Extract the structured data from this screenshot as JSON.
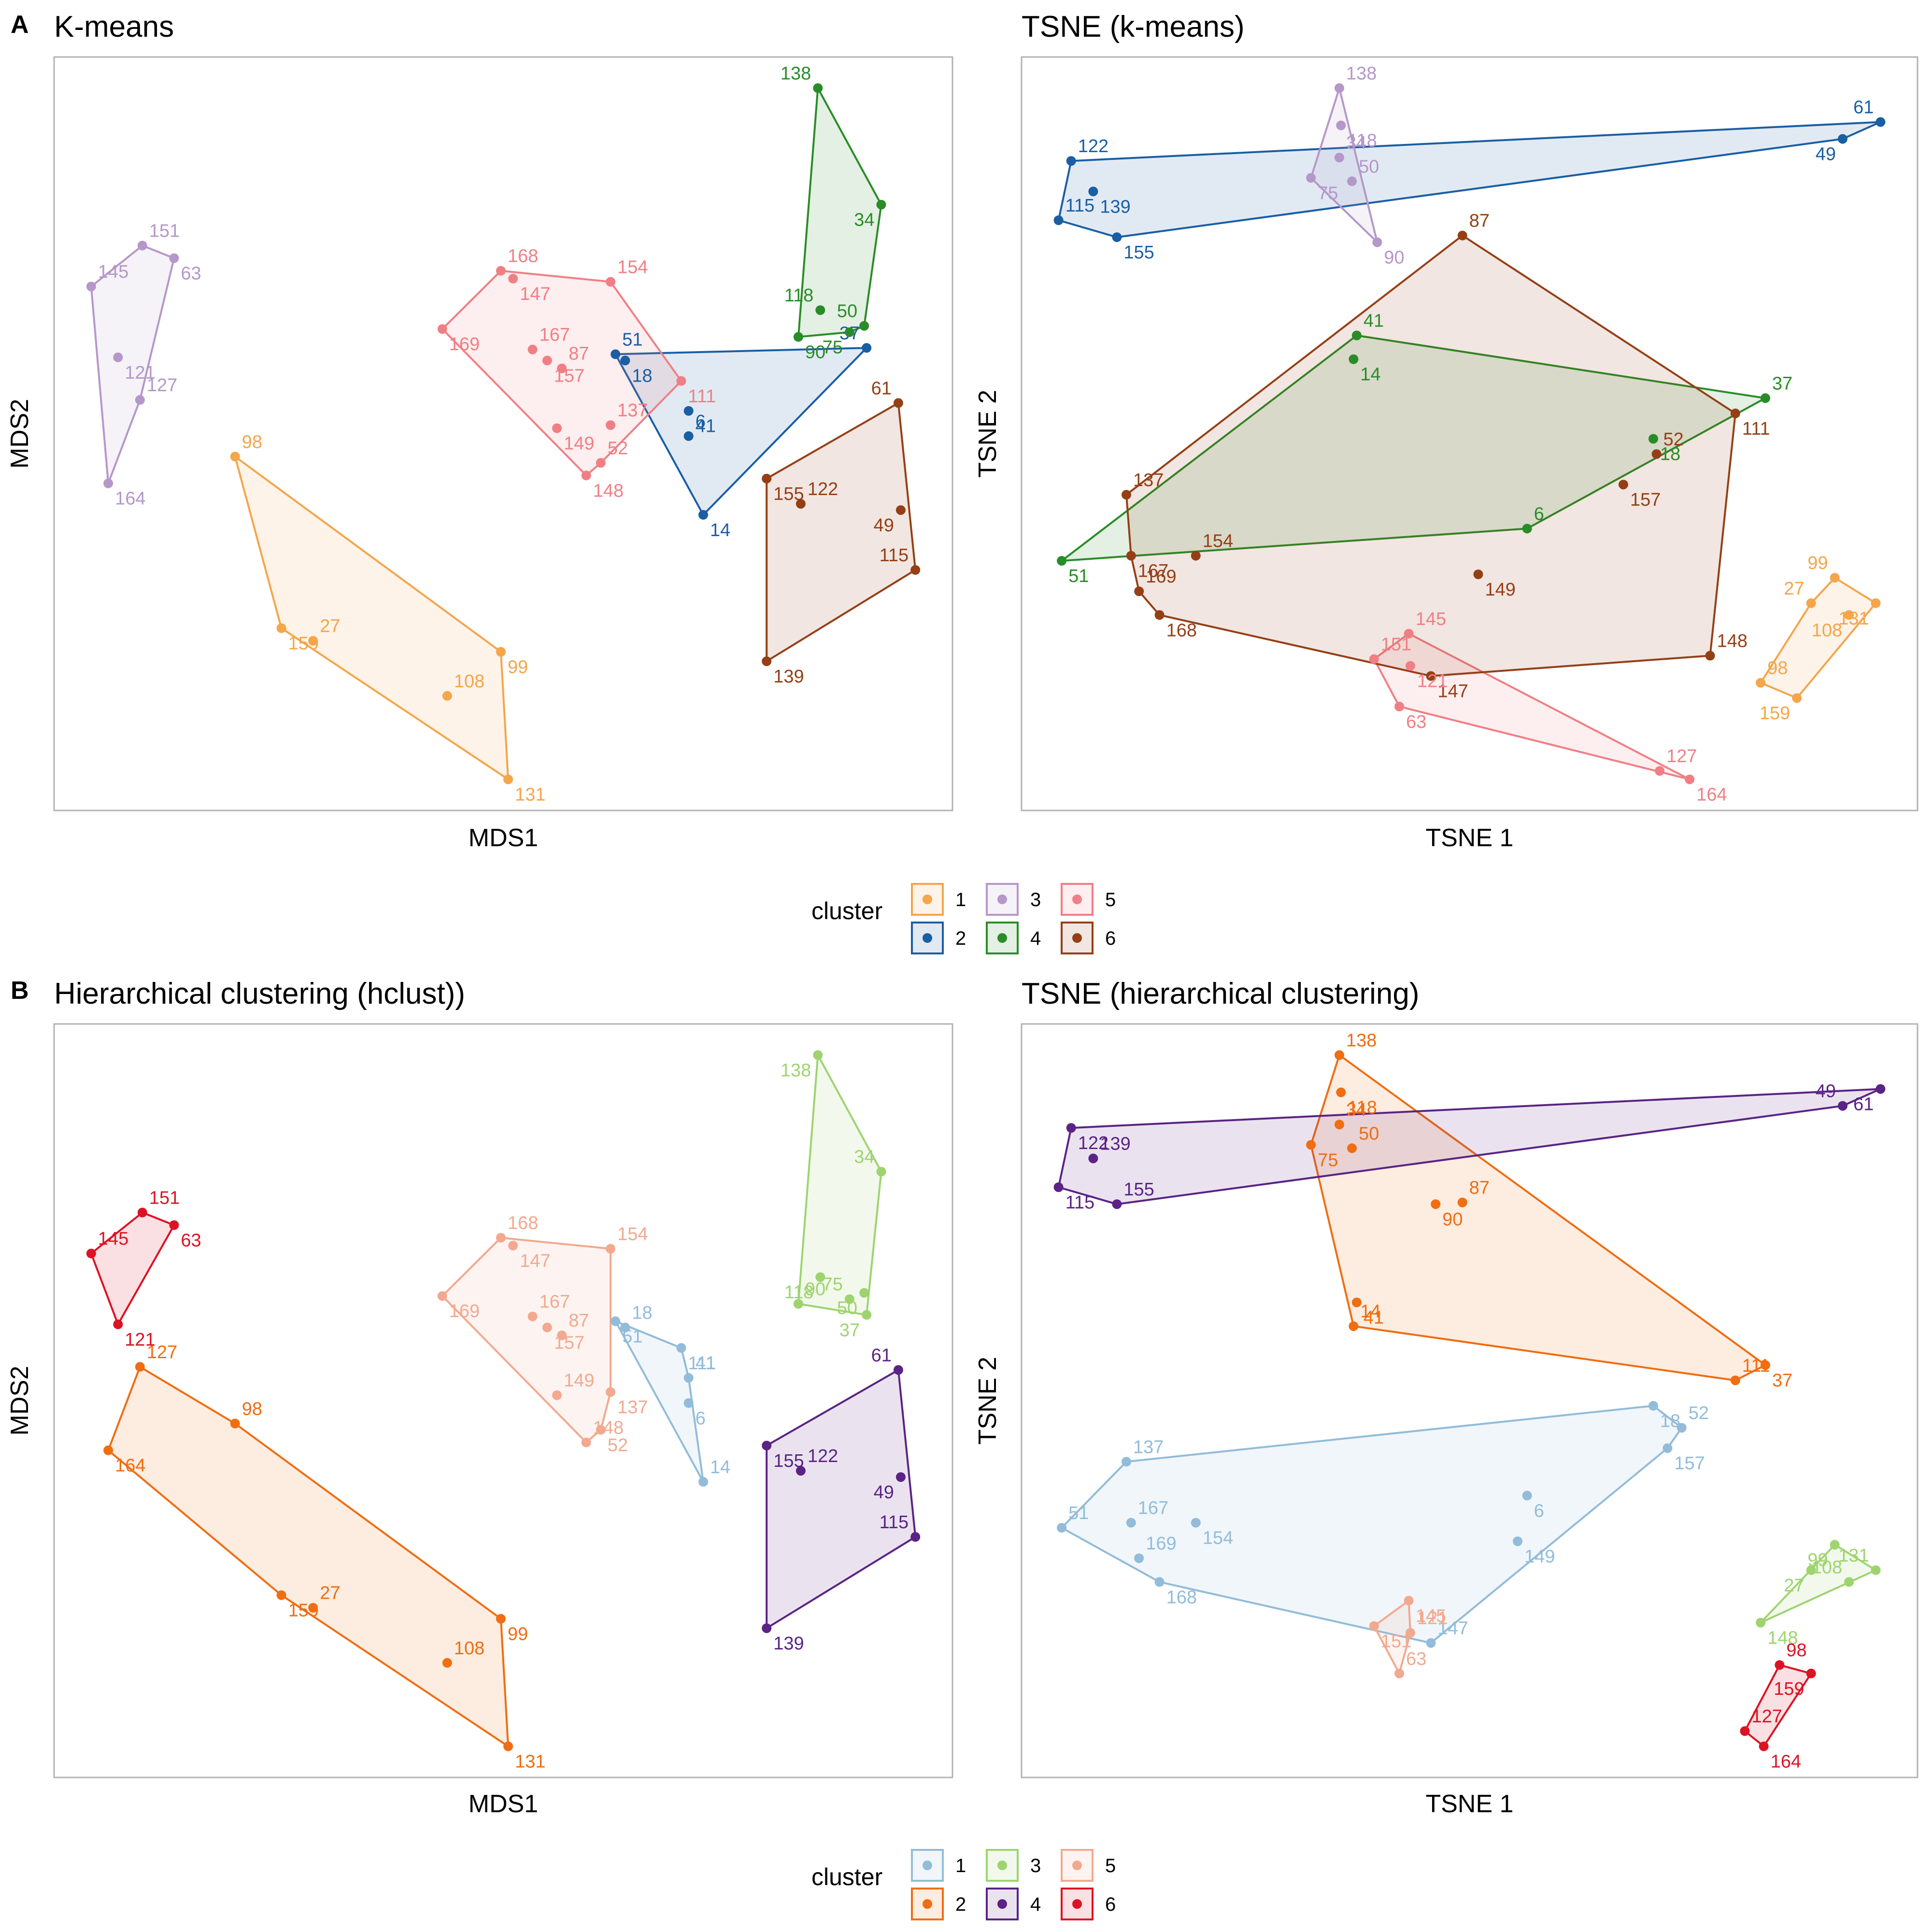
{
  "figure": {
    "legend_title": "cluster",
    "legend_labels": [
      "1",
      "2",
      "3",
      "4",
      "5",
      "6"
    ]
  },
  "palettes": {
    "A": [
      "#F5A54A",
      "#1A5EA4",
      "#B597C9",
      "#2A8C28",
      "#F07F85",
      "#953F16"
    ],
    "B": [
      "#92BCD9",
      "#F06D11",
      "#9ED46F",
      "#5A2385",
      "#F2A98F",
      "#DC1324"
    ]
  },
  "chart_data": [
    {
      "type": "scatter",
      "panel": "A",
      "title": "K-means",
      "xlabel": "MDS1",
      "ylabel": "MDS2",
      "grid": false,
      "hull_per_cluster": true,
      "points": [
        {
          "id": "151",
          "x": -1.84,
          "y": 1.88,
          "cluster": 3
        },
        {
          "id": "63",
          "x": -1.71,
          "y": 1.8,
          "cluster": 3
        },
        {
          "id": "145",
          "x": -2.05,
          "y": 1.62,
          "cluster": 3
        },
        {
          "id": "121",
          "x": -1.94,
          "y": 1.17,
          "cluster": 3
        },
        {
          "id": "127",
          "x": -1.85,
          "y": 0.9,
          "cluster": 3
        },
        {
          "id": "164",
          "x": -1.98,
          "y": 0.37,
          "cluster": 3
        },
        {
          "id": "168",
          "x": -0.37,
          "y": 1.72,
          "cluster": 5
        },
        {
          "id": "147",
          "x": -0.32,
          "y": 1.67,
          "cluster": 5
        },
        {
          "id": "154",
          "x": 0.08,
          "y": 1.65,
          "cluster": 5
        },
        {
          "id": "169",
          "x": -0.61,
          "y": 1.35,
          "cluster": 5
        },
        {
          "id": "167",
          "x": -0.24,
          "y": 1.22,
          "cluster": 5
        },
        {
          "id": "157",
          "x": -0.18,
          "y": 1.15,
          "cluster": 5
        },
        {
          "id": "87",
          "x": -0.12,
          "y": 1.1,
          "cluster": 5
        },
        {
          "id": "111",
          "x": 0.37,
          "y": 1.02,
          "cluster": 5
        },
        {
          "id": "137",
          "x": 0.08,
          "y": 0.74,
          "cluster": 5
        },
        {
          "id": "149",
          "x": -0.14,
          "y": 0.72,
          "cluster": 5
        },
        {
          "id": "52",
          "x": 0.04,
          "y": 0.5,
          "cluster": 5
        },
        {
          "id": "148",
          "x": -0.02,
          "y": 0.42,
          "cluster": 5
        },
        {
          "id": "51",
          "x": 0.1,
          "y": 1.19,
          "cluster": 2
        },
        {
          "id": "18",
          "x": 0.14,
          "y": 1.15,
          "cluster": 2
        },
        {
          "id": "37",
          "x": 1.13,
          "y": 1.23,
          "cluster": 2
        },
        {
          "id": "41",
          "x": 0.4,
          "y": 0.83,
          "cluster": 2
        },
        {
          "id": "6",
          "x": 0.4,
          "y": 0.67,
          "cluster": 2
        },
        {
          "id": "14",
          "x": 0.46,
          "y": 0.17,
          "cluster": 2
        },
        {
          "id": "138",
          "x": 0.93,
          "y": 2.88,
          "cluster": 4
        },
        {
          "id": "34",
          "x": 1.19,
          "y": 2.14,
          "cluster": 4
        },
        {
          "id": "118",
          "x": 0.94,
          "y": 1.47,
          "cluster": 4
        },
        {
          "id": "75",
          "x": 1.06,
          "y": 1.33,
          "cluster": 4
        },
        {
          "id": "50",
          "x": 1.12,
          "y": 1.37,
          "cluster": 4
        },
        {
          "id": "90",
          "x": 0.85,
          "y": 1.3,
          "cluster": 4
        },
        {
          "id": "61",
          "x": 1.26,
          "y": 0.88,
          "cluster": 6
        },
        {
          "id": "155",
          "x": 0.72,
          "y": 0.4,
          "cluster": 6
        },
        {
          "id": "122",
          "x": 0.86,
          "y": 0.24,
          "cluster": 6
        },
        {
          "id": "49",
          "x": 1.27,
          "y": 0.2,
          "cluster": 6
        },
        {
          "id": "115",
          "x": 1.33,
          "y": -0.18,
          "cluster": 6
        },
        {
          "id": "139",
          "x": 0.72,
          "y": -0.76,
          "cluster": 6
        },
        {
          "id": "98",
          "x": -1.46,
          "y": 0.54,
          "cluster": 1
        },
        {
          "id": "159",
          "x": -1.27,
          "y": -0.55,
          "cluster": 1
        },
        {
          "id": "27",
          "x": -1.14,
          "y": -0.63,
          "cluster": 1
        },
        {
          "id": "99",
          "x": -0.37,
          "y": -0.7,
          "cluster": 1
        },
        {
          "id": "108",
          "x": -0.59,
          "y": -0.98,
          "cluster": 1
        },
        {
          "id": "131",
          "x": -0.34,
          "y": -1.51,
          "cluster": 1
        }
      ]
    },
    {
      "type": "scatter",
      "panel": "A",
      "title": "TSNE (k-means)",
      "xlabel": "TSNE 1",
      "ylabel": "TSNE 2",
      "grid": false,
      "hull_per_cluster": true,
      "points": [
        {
          "id": "138",
          "x": -2.7,
          "y": 15.8,
          "cluster": 3
        },
        {
          "id": "118",
          "x": -2.6,
          "y": 13.6,
          "cluster": 3
        },
        {
          "id": "34",
          "x": -2.7,
          "y": 11.7,
          "cluster": 3
        },
        {
          "id": "75",
          "x": -4.5,
          "y": 10.5,
          "cluster": 3
        },
        {
          "id": "50",
          "x": -1.9,
          "y": 10.3,
          "cluster": 3
        },
        {
          "id": "90",
          "x": -0.3,
          "y": 6.7,
          "cluster": 3
        },
        {
          "id": "61",
          "x": 31.6,
          "y": 13.8,
          "cluster": 2
        },
        {
          "id": "49",
          "x": 29.2,
          "y": 12.8,
          "cluster": 2
        },
        {
          "id": "122",
          "x": -19.7,
          "y": 11.5,
          "cluster": 2
        },
        {
          "id": "139",
          "x": -18.3,
          "y": 9.7,
          "cluster": 2
        },
        {
          "id": "115",
          "x": -20.5,
          "y": 8.0,
          "cluster": 2
        },
        {
          "id": "155",
          "x": -16.8,
          "y": 7.0,
          "cluster": 2
        },
        {
          "id": "87",
          "x": 5.1,
          "y": 7.1,
          "cluster": 6
        },
        {
          "id": "111",
          "x": 22.4,
          "y": -3.4,
          "cluster": 6
        },
        {
          "id": "52",
          "x": 17.4,
          "y": -5.8,
          "cluster": 6
        },
        {
          "id": "157",
          "x": 15.3,
          "y": -7.6,
          "cluster": 6
        },
        {
          "id": "137",
          "x": -16.2,
          "y": -8.2,
          "cluster": 6
        },
        {
          "id": "167",
          "x": -15.9,
          "y": -11.8,
          "cluster": 6
        },
        {
          "id": "154",
          "x": -11.8,
          "y": -11.8,
          "cluster": 6
        },
        {
          "id": "149",
          "x": 6.1,
          "y": -12.9,
          "cluster": 6
        },
        {
          "id": "169",
          "x": -15.4,
          "y": -13.9,
          "cluster": 6
        },
        {
          "id": "168",
          "x": -14.1,
          "y": -15.3,
          "cluster": 6
        },
        {
          "id": "148",
          "x": 20.8,
          "y": -17.7,
          "cluster": 6
        },
        {
          "id": "147",
          "x": 3.1,
          "y": -18.9,
          "cluster": 6
        },
        {
          "id": "41",
          "x": -1.6,
          "y": 1.2,
          "cluster": 4
        },
        {
          "id": "14",
          "x": -1.8,
          "y": -0.2,
          "cluster": 4
        },
        {
          "id": "37",
          "x": 24.3,
          "y": -2.5,
          "cluster": 4
        },
        {
          "id": "18",
          "x": 17.2,
          "y": -4.9,
          "cluster": 4
        },
        {
          "id": "6",
          "x": 9.2,
          "y": -10.2,
          "cluster": 4
        },
        {
          "id": "51",
          "x": -20.3,
          "y": -12.1,
          "cluster": 4
        },
        {
          "id": "145",
          "x": 1.7,
          "y": -16.4,
          "cluster": 5
        },
        {
          "id": "121",
          "x": 1.8,
          "y": -18.3,
          "cluster": 5
        },
        {
          "id": "151",
          "x": -0.5,
          "y": -17.9,
          "cluster": 5
        },
        {
          "id": "63",
          "x": 1.1,
          "y": -20.7,
          "cluster": 5
        },
        {
          "id": "127",
          "x": 17.6,
          "y": -24.5,
          "cluster": 5
        },
        {
          "id": "164",
          "x": 19.5,
          "y": -25.0,
          "cluster": 5
        },
        {
          "id": "99",
          "x": 28.7,
          "y": -13.1,
          "cluster": 1
        },
        {
          "id": "131",
          "x": 31.3,
          "y": -14.6,
          "cluster": 1
        },
        {
          "id": "27",
          "x": 27.2,
          "y": -14.6,
          "cluster": 1
        },
        {
          "id": "108",
          "x": 29.6,
          "y": -15.3,
          "cluster": 1
        },
        {
          "id": "98",
          "x": 24.0,
          "y": -19.3,
          "cluster": 1
        },
        {
          "id": "159",
          "x": 26.3,
          "y": -20.2,
          "cluster": 1
        }
      ]
    },
    {
      "type": "scatter",
      "panel": "B",
      "title": "Hierarchical clustering (hclust))",
      "xlabel": "MDS1",
      "ylabel": "MDS2",
      "grid": false,
      "hull_per_cluster": true,
      "points": [
        {
          "id": "151",
          "x": -1.84,
          "y": 1.88,
          "cluster": 6
        },
        {
          "id": "63",
          "x": -1.71,
          "y": 1.8,
          "cluster": 6
        },
        {
          "id": "145",
          "x": -2.05,
          "y": 1.62,
          "cluster": 6
        },
        {
          "id": "121",
          "x": -1.94,
          "y": 1.17,
          "cluster": 6
        },
        {
          "id": "127",
          "x": -1.85,
          "y": 0.9,
          "cluster": 2
        },
        {
          "id": "164",
          "x": -1.98,
          "y": 0.37,
          "cluster": 2
        },
        {
          "id": "98",
          "x": -1.46,
          "y": 0.54,
          "cluster": 2
        },
        {
          "id": "159",
          "x": -1.27,
          "y": -0.55,
          "cluster": 2
        },
        {
          "id": "27",
          "x": -1.14,
          "y": -0.63,
          "cluster": 2
        },
        {
          "id": "99",
          "x": -0.37,
          "y": -0.7,
          "cluster": 2
        },
        {
          "id": "108",
          "x": -0.59,
          "y": -0.98,
          "cluster": 2
        },
        {
          "id": "131",
          "x": -0.34,
          "y": -1.51,
          "cluster": 2
        },
        {
          "id": "168",
          "x": -0.37,
          "y": 1.72,
          "cluster": 5
        },
        {
          "id": "147",
          "x": -0.32,
          "y": 1.67,
          "cluster": 5
        },
        {
          "id": "154",
          "x": 0.08,
          "y": 1.65,
          "cluster": 5
        },
        {
          "id": "169",
          "x": -0.61,
          "y": 1.35,
          "cluster": 5
        },
        {
          "id": "167",
          "x": -0.24,
          "y": 1.22,
          "cluster": 5
        },
        {
          "id": "157",
          "x": -0.18,
          "y": 1.15,
          "cluster": 5
        },
        {
          "id": "87",
          "x": -0.12,
          "y": 1.1,
          "cluster": 5
        },
        {
          "id": "137",
          "x": 0.08,
          "y": 0.74,
          "cluster": 5
        },
        {
          "id": "149",
          "x": -0.14,
          "y": 0.72,
          "cluster": 5
        },
        {
          "id": "52",
          "x": 0.04,
          "y": 0.5,
          "cluster": 5
        },
        {
          "id": "148",
          "x": -0.02,
          "y": 0.42,
          "cluster": 5
        },
        {
          "id": "51",
          "x": 0.1,
          "y": 1.19,
          "cluster": 1
        },
        {
          "id": "18",
          "x": 0.14,
          "y": 1.15,
          "cluster": 1
        },
        {
          "id": "111",
          "x": 0.37,
          "y": 1.02,
          "cluster": 1
        },
        {
          "id": "41",
          "x": 0.4,
          "y": 0.83,
          "cluster": 1
        },
        {
          "id": "6",
          "x": 0.4,
          "y": 0.67,
          "cluster": 1
        },
        {
          "id": "14",
          "x": 0.46,
          "y": 0.17,
          "cluster": 1
        },
        {
          "id": "138",
          "x": 0.93,
          "y": 2.88,
          "cluster": 3
        },
        {
          "id": "34",
          "x": 1.19,
          "y": 2.14,
          "cluster": 3
        },
        {
          "id": "118",
          "x": 0.94,
          "y": 1.47,
          "cluster": 3
        },
        {
          "id": "75",
          "x": 1.06,
          "y": 1.33,
          "cluster": 3
        },
        {
          "id": "50",
          "x": 1.12,
          "y": 1.37,
          "cluster": 3
        },
        {
          "id": "90",
          "x": 0.85,
          "y": 1.3,
          "cluster": 3
        },
        {
          "id": "37",
          "x": 1.13,
          "y": 1.23,
          "cluster": 3
        },
        {
          "id": "61",
          "x": 1.26,
          "y": 0.88,
          "cluster": 4
        },
        {
          "id": "155",
          "x": 0.72,
          "y": 0.4,
          "cluster": 4
        },
        {
          "id": "122",
          "x": 0.86,
          "y": 0.24,
          "cluster": 4
        },
        {
          "id": "49",
          "x": 1.27,
          "y": 0.2,
          "cluster": 4
        },
        {
          "id": "115",
          "x": 1.33,
          "y": -0.18,
          "cluster": 4
        },
        {
          "id": "139",
          "x": 0.72,
          "y": -0.76,
          "cluster": 4
        }
      ]
    },
    {
      "type": "scatter",
      "panel": "B",
      "title": "TSNE (hierarchical clustering)",
      "xlabel": "TSNE 1",
      "ylabel": "TSNE 2",
      "grid": false,
      "hull_per_cluster": true,
      "points": [
        {
          "id": "138",
          "x": -2.7,
          "y": 15.8,
          "cluster": 2
        },
        {
          "id": "118",
          "x": -2.6,
          "y": 13.6,
          "cluster": 2
        },
        {
          "id": "34",
          "x": -2.7,
          "y": 11.7,
          "cluster": 2
        },
        {
          "id": "75",
          "x": -4.5,
          "y": 10.5,
          "cluster": 2
        },
        {
          "id": "50",
          "x": -1.9,
          "y": 10.3,
          "cluster": 2
        },
        {
          "id": "90",
          "x": 3.4,
          "y": 7.0,
          "cluster": 2
        },
        {
          "id": "87",
          "x": 5.1,
          "y": 7.1,
          "cluster": 2
        },
        {
          "id": "41",
          "x": -1.6,
          "y": 1.2,
          "cluster": 2
        },
        {
          "id": "14",
          "x": -1.8,
          "y": -0.2,
          "cluster": 2
        },
        {
          "id": "37",
          "x": 24.3,
          "y": -2.5,
          "cluster": 2
        },
        {
          "id": "111",
          "x": 22.4,
          "y": -3.4,
          "cluster": 2
        },
        {
          "id": "61",
          "x": 31.6,
          "y": 13.8,
          "cluster": 4
        },
        {
          "id": "49",
          "x": 29.2,
          "y": 12.8,
          "cluster": 4
        },
        {
          "id": "122",
          "x": -19.7,
          "y": 11.5,
          "cluster": 4
        },
        {
          "id": "139",
          "x": -18.3,
          "y": 9.7,
          "cluster": 4
        },
        {
          "id": "115",
          "x": -20.5,
          "y": 8.0,
          "cluster": 4
        },
        {
          "id": "155",
          "x": -16.8,
          "y": 7.0,
          "cluster": 4
        },
        {
          "id": "18",
          "x": 17.2,
          "y": -4.9,
          "cluster": 1
        },
        {
          "id": "52",
          "x": 19.0,
          "y": -6.2,
          "cluster": 1
        },
        {
          "id": "157",
          "x": 18.1,
          "y": -7.4,
          "cluster": 1
        },
        {
          "id": "137",
          "x": -16.2,
          "y": -8.2,
          "cluster": 1
        },
        {
          "id": "6",
          "x": 9.2,
          "y": -10.2,
          "cluster": 1
        },
        {
          "id": "167",
          "x": -15.9,
          "y": -11.8,
          "cluster": 1
        },
        {
          "id": "154",
          "x": -11.8,
          "y": -11.8,
          "cluster": 1
        },
        {
          "id": "51",
          "x": -20.3,
          "y": -12.1,
          "cluster": 1
        },
        {
          "id": "149",
          "x": 8.6,
          "y": -12.9,
          "cluster": 1
        },
        {
          "id": "169",
          "x": -15.4,
          "y": -13.9,
          "cluster": 1
        },
        {
          "id": "168",
          "x": -14.1,
          "y": -15.3,
          "cluster": 1
        },
        {
          "id": "147",
          "x": 3.1,
          "y": -18.9,
          "cluster": 1
        },
        {
          "id": "145",
          "x": 1.7,
          "y": -16.4,
          "cluster": 5
        },
        {
          "id": "121",
          "x": 1.8,
          "y": -18.3,
          "cluster": 5
        },
        {
          "id": "151",
          "x": -0.5,
          "y": -17.9,
          "cluster": 5
        },
        {
          "id": "63",
          "x": 1.1,
          "y": -20.7,
          "cluster": 5
        },
        {
          "id": "99",
          "x": 28.7,
          "y": -13.1,
          "cluster": 3
        },
        {
          "id": "131",
          "x": 31.3,
          "y": -14.6,
          "cluster": 3
        },
        {
          "id": "27",
          "x": 27.2,
          "y": -14.6,
          "cluster": 3
        },
        {
          "id": "108",
          "x": 29.6,
          "y": -15.3,
          "cluster": 3
        },
        {
          "id": "148",
          "x": 24.0,
          "y": -17.7,
          "cluster": 3
        },
        {
          "id": "98",
          "x": 25.2,
          "y": -20.2,
          "cluster": 6
        },
        {
          "id": "159",
          "x": 27.2,
          "y": -20.7,
          "cluster": 6
        },
        {
          "id": "127",
          "x": 23.0,
          "y": -24.1,
          "cluster": 6
        },
        {
          "id": "164",
          "x": 24.2,
          "y": -25.0,
          "cluster": 6
        }
      ]
    }
  ]
}
